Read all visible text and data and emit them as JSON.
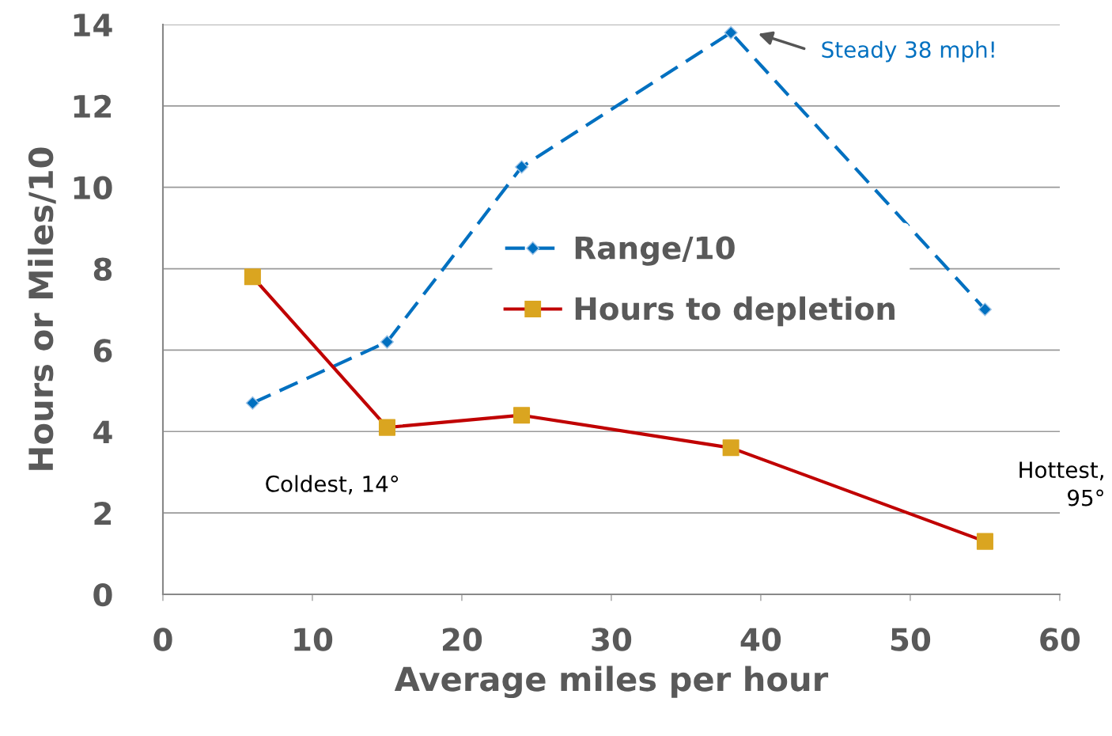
{
  "chart_data": {
    "type": "line",
    "xlabel": "Average miles per hour",
    "ylabel": "Hours or Miles/10",
    "xlim": [
      0,
      60
    ],
    "xticks": [
      0,
      10,
      20,
      30,
      40,
      50,
      60
    ],
    "ylim": [
      0,
      14
    ],
    "yticks": [
      0,
      2,
      4,
      6,
      8,
      10,
      12,
      14
    ],
    "grid": "y",
    "legend": "center",
    "series": [
      {
        "name": "Range/10",
        "color": "#0070c0",
        "marker": "diamond",
        "line_style": "dashed",
        "x": [
          6,
          15,
          24,
          38,
          55
        ],
        "values": [
          4.7,
          6.2,
          10.5,
          13.8,
          7.0
        ]
      },
      {
        "name": "Hours to depletion",
        "color": "#c00000",
        "colors": [
          "#daa520",
          "#daa520",
          "#daa520",
          "#daa520",
          "#daa520"
        ],
        "marker": "square",
        "line_style": "solid",
        "x": [
          6,
          15,
          24,
          38,
          55
        ],
        "values": [
          7.8,
          4.1,
          4.4,
          3.6,
          1.3
        ]
      }
    ],
    "annotations": [
      "Steady 38 mph!",
      "Coldest, 14°",
      "Hottest,\n95°"
    ]
  }
}
